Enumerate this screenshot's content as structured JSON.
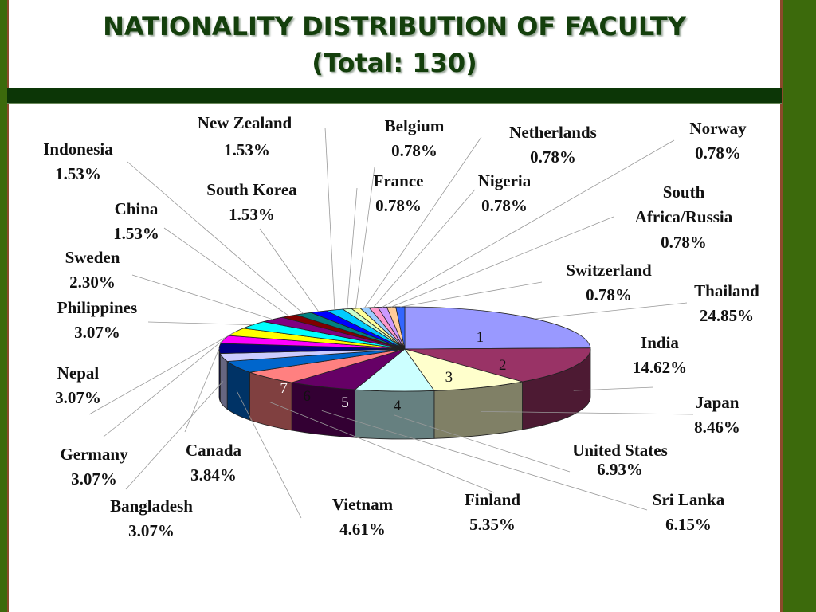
{
  "title_line1": "NATIONALITY DISTRIBUTION OF FACULTY",
  "title_line2": "(Total: 130)",
  "chart_data": {
    "type": "pie",
    "title": "NATIONALITY DISTRIBUTION OF FACULTY (Total: 130)",
    "slice_numbers_shown": [
      "1",
      "2",
      "3",
      "4",
      "5",
      "6",
      "7"
    ],
    "slices": [
      {
        "name": "Thailand",
        "value": 24.85,
        "label": "24.85%",
        "color": "#9999ff"
      },
      {
        "name": "India",
        "value": 14.62,
        "label": "14.62%",
        "color": "#993366"
      },
      {
        "name": "Japan",
        "value": 8.46,
        "label": "8.46%",
        "color": "#ffffcc"
      },
      {
        "name": "United States",
        "value": 6.93,
        "label": "6.93%",
        "color": "#ccffff"
      },
      {
        "name": "Sri Lanka",
        "value": 6.15,
        "label": "6.15%",
        "color": "#660066"
      },
      {
        "name": "Finland",
        "value": 5.35,
        "label": "5.35%",
        "color": "#ff8080"
      },
      {
        "name": "Vietnam",
        "value": 4.61,
        "label": "4.61%",
        "color": "#0066cc"
      },
      {
        "name": "Bangladesh",
        "value": 3.07,
        "label": "3.07%",
        "color": "#ccccff"
      },
      {
        "name": "Canada",
        "value": 3.84,
        "label": "3.84%",
        "color": "#000080"
      },
      {
        "name": "Germany",
        "value": 3.07,
        "label": "3.07%",
        "color": "#ff00ff"
      },
      {
        "name": "Nepal",
        "value": 3.07,
        "label": "3.07%",
        "color": "#ffff00"
      },
      {
        "name": "Philippines",
        "value": 3.07,
        "label": "3.07%",
        "color": "#00ffff"
      },
      {
        "name": "Sweden",
        "value": 2.3,
        "label": "2.30%",
        "color": "#800080"
      },
      {
        "name": "China",
        "value": 1.53,
        "label": "1.53%",
        "color": "#800000"
      },
      {
        "name": "Indonesia",
        "value": 1.53,
        "label": "1.53%",
        "color": "#008080"
      },
      {
        "name": "South Korea",
        "value": 1.53,
        "label": "1.53%",
        "color": "#0000ff"
      },
      {
        "name": "New Zealand",
        "value": 1.53,
        "label": "1.53%",
        "color": "#00ccff"
      },
      {
        "name": "France",
        "value": 0.78,
        "label": "0.78%",
        "color": "#ccffcc"
      },
      {
        "name": "Belgium",
        "value": 0.78,
        "label": "0.78%",
        "color": "#ffff99"
      },
      {
        "name": "Netherlands",
        "value": 0.78,
        "label": "0.78%",
        "color": "#99ccff"
      },
      {
        "name": "Nigeria",
        "value": 0.78,
        "label": "0.78%",
        "color": "#ff99cc"
      },
      {
        "name": "Norway",
        "value": 0.78,
        "label": "0.78%",
        "color": "#cc99ff"
      },
      {
        "name": "South Africa/Russia",
        "value": 0.78,
        "label": "0.78%",
        "color": "#ffcc99"
      },
      {
        "name": "Switzerland",
        "value": 0.78,
        "label": "0.78%",
        "color": "#3366ff"
      }
    ]
  }
}
